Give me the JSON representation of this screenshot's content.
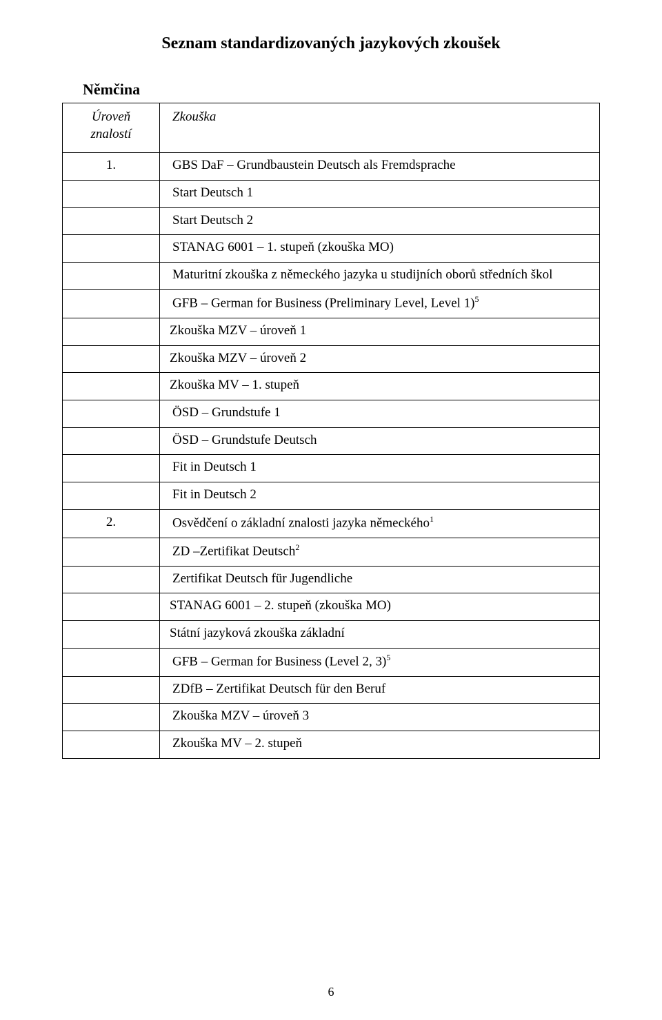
{
  "title": "Seznam standardizovaných jazykových zkoušek",
  "section_label": "Němčina",
  "header": {
    "left_line1": "Úroveň",
    "left_line2": "znalostí",
    "right": "Zkouška"
  },
  "group1": {
    "num": "1.",
    "rows": [
      "GBS DaF – Grundbaustein Deutsch als Fremdsprache",
      "Start Deutsch 1",
      "Start Deutsch 2",
      "STANAG 6001 – 1. stupeň (zkouška MO)",
      "Maturitní zkouška z německého jazyka u studijních oborů středních škol",
      "GFB – German for Business (Preliminary Level, Level 1)",
      "Zkouška MZV –  úroveň  1",
      "Zkouška MZV –  úroveň  2",
      "Zkouška MV –  1. stupeň",
      "ÖSD – Grundstufe 1",
      "ÖSD – Grundstufe Deutsch",
      "Fit in Deutsch 1",
      "Fit in Deutsch 2"
    ],
    "sup5_index": 5
  },
  "group2": {
    "num": "2.",
    "rows": [
      "Osvědčení o základní znalosti jazyka německého",
      "ZD –Zertifikat Deutsch",
      "Zertifikat Deutsch für Jugendliche",
      "STANAG 6001 – 2. stupeň  (zkouška MO)",
      "Státní jazyková zkouška základní",
      "GFB – German for Business (Level 2, 3)",
      "ZDfB – Zertifikat Deutsch für den Beruf",
      "Zkouška MZV – úroveň 3",
      "Zkouška MV – 2. stupeň"
    ],
    "sup1_index": 0,
    "sup2_index": 1,
    "sup5_index": 5
  },
  "superscripts": {
    "s1": "1",
    "s2": "2",
    "s5": "5"
  },
  "page_number": "6"
}
